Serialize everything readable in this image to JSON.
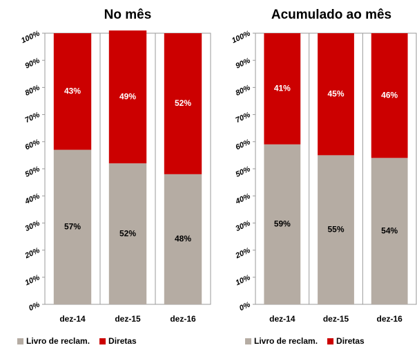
{
  "chart_data": [
    {
      "type": "stacked_bar",
      "title": "No mês",
      "categories": [
        "dez-14",
        "dez-15",
        "dez-16"
      ],
      "series": [
        {
          "name": "Livro de reclam.",
          "color": "#b5aca3",
          "values": [
            57,
            52,
            48
          ],
          "value_labels": [
            "57%",
            "52%",
            "48%"
          ]
        },
        {
          "name": "Diretas",
          "color": "#cc0000",
          "values": [
            43,
            49,
            52
          ],
          "value_labels": [
            "43%",
            "49%",
            "52%"
          ]
        }
      ],
      "ylim": [
        0,
        100
      ],
      "yticks": [
        {
          "value": 0,
          "label": "0%"
        },
        {
          "value": 10,
          "label": "10%"
        },
        {
          "value": 20,
          "label": "20%"
        },
        {
          "value": 30,
          "label": "30%"
        },
        {
          "value": 40,
          "label": "40%"
        },
        {
          "value": 50,
          "label": "50%"
        },
        {
          "value": 60,
          "label": "60%"
        },
        {
          "value": 70,
          "label": "70%"
        },
        {
          "value": 80,
          "label": "80%"
        },
        {
          "value": 90,
          "label": "90%"
        },
        {
          "value": 100,
          "label": "100%"
        }
      ],
      "legend": "bottom"
    },
    {
      "type": "stacked_bar",
      "title": "Acumulado ao mês",
      "categories": [
        "dez-14",
        "dez-15",
        "dez-16"
      ],
      "series": [
        {
          "name": "Livro de reclam.",
          "color": "#b5aca3",
          "values": [
            59,
            55,
            54
          ],
          "value_labels": [
            "59%",
            "55%",
            "54%"
          ]
        },
        {
          "name": "Diretas",
          "color": "#cc0000",
          "values": [
            41,
            45,
            46
          ],
          "value_labels": [
            "41%",
            "45%",
            "46%"
          ]
        }
      ],
      "ylim": [
        0,
        100
      ],
      "yticks": [
        {
          "value": 0,
          "label": "0%"
        },
        {
          "value": 10,
          "label": "10%"
        },
        {
          "value": 20,
          "label": "20%"
        },
        {
          "value": 30,
          "label": "30%"
        },
        {
          "value": 40,
          "label": "40%"
        },
        {
          "value": 50,
          "label": "50%"
        },
        {
          "value": 60,
          "label": "60%"
        },
        {
          "value": 70,
          "label": "70%"
        },
        {
          "value": 80,
          "label": "80%"
        },
        {
          "value": 90,
          "label": "90%"
        },
        {
          "value": 100,
          "label": "100%"
        }
      ],
      "legend": "bottom"
    }
  ]
}
